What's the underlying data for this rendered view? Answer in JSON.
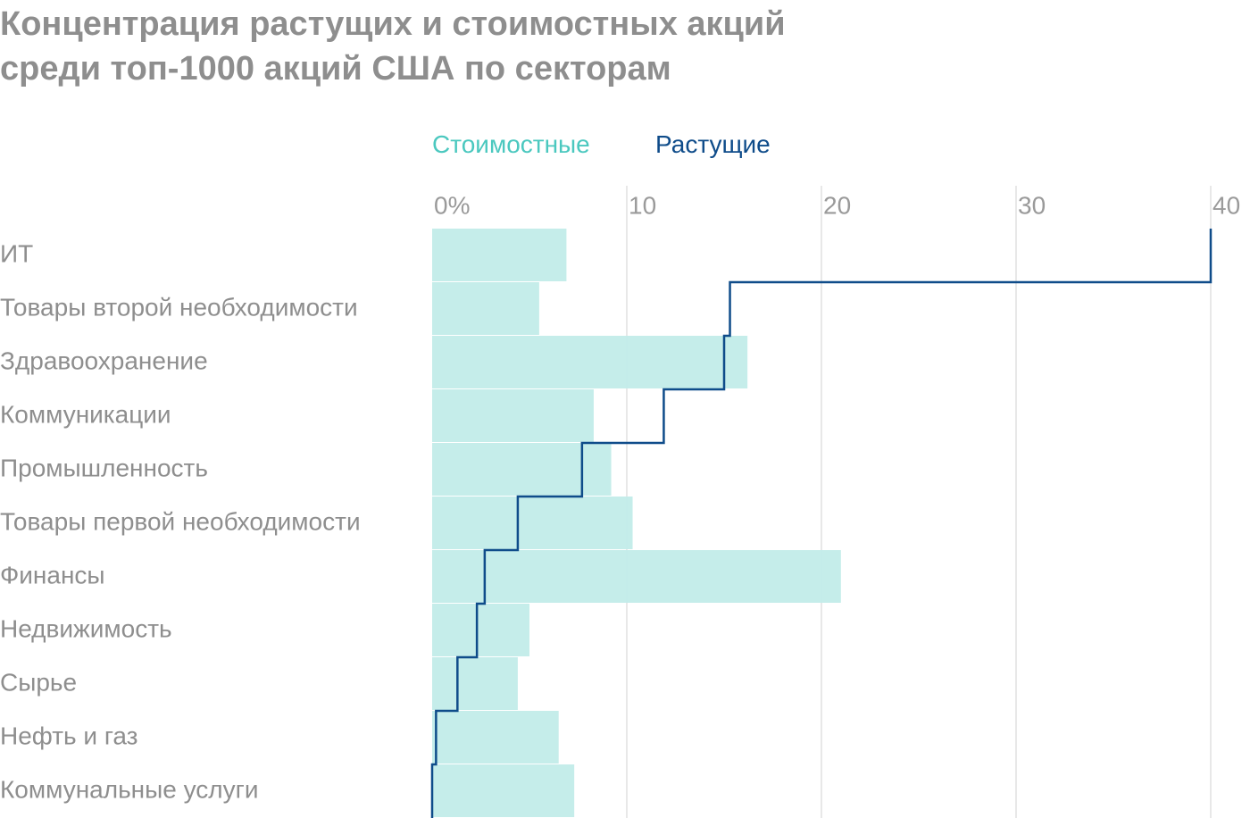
{
  "title": {
    "line1": "Концентрация растущих и стоимостных акций",
    "line2": "среди топ-1000 акций США по секторам"
  },
  "colors": {
    "value": "#c2ece9",
    "value_legend": "#4bc8bf",
    "growth": "#0f4c8a",
    "grid": "#e0e0e0",
    "axis_text": "#9a9a9a",
    "category_text": "#8e8e8e",
    "title_text": "#8e8e8e"
  },
  "chart_data": {
    "type": "bar",
    "orientation": "horizontal",
    "xlim": [
      0,
      40
    ],
    "x_ticks": [
      0,
      10,
      20,
      30,
      40
    ],
    "x_tick_labels": [
      "0%",
      "10",
      "20",
      "30",
      "40"
    ],
    "legend_position": "top",
    "grid": true,
    "categories": [
      "ИТ",
      "Товары второй необходимости",
      "Здравоохранение",
      "Коммуникации",
      "Промышленность",
      "Товары первой необходимости",
      "Финансы",
      "Недвижимость",
      "Сырье",
      "Нефть и газ",
      "Коммунальные услуги"
    ],
    "series": [
      {
        "name": "Стоимостные",
        "style": "bar",
        "values": [
          6.9,
          5.5,
          16.2,
          8.3,
          9.2,
          10.3,
          21.0,
          5.0,
          4.4,
          6.5,
          7.3
        ]
      },
      {
        "name": "Растущие",
        "style": "step-line",
        "values": [
          40.0,
          15.3,
          15.0,
          11.9,
          7.7,
          4.4,
          2.7,
          2.3,
          1.3,
          0.2,
          0.0
        ]
      }
    ]
  }
}
